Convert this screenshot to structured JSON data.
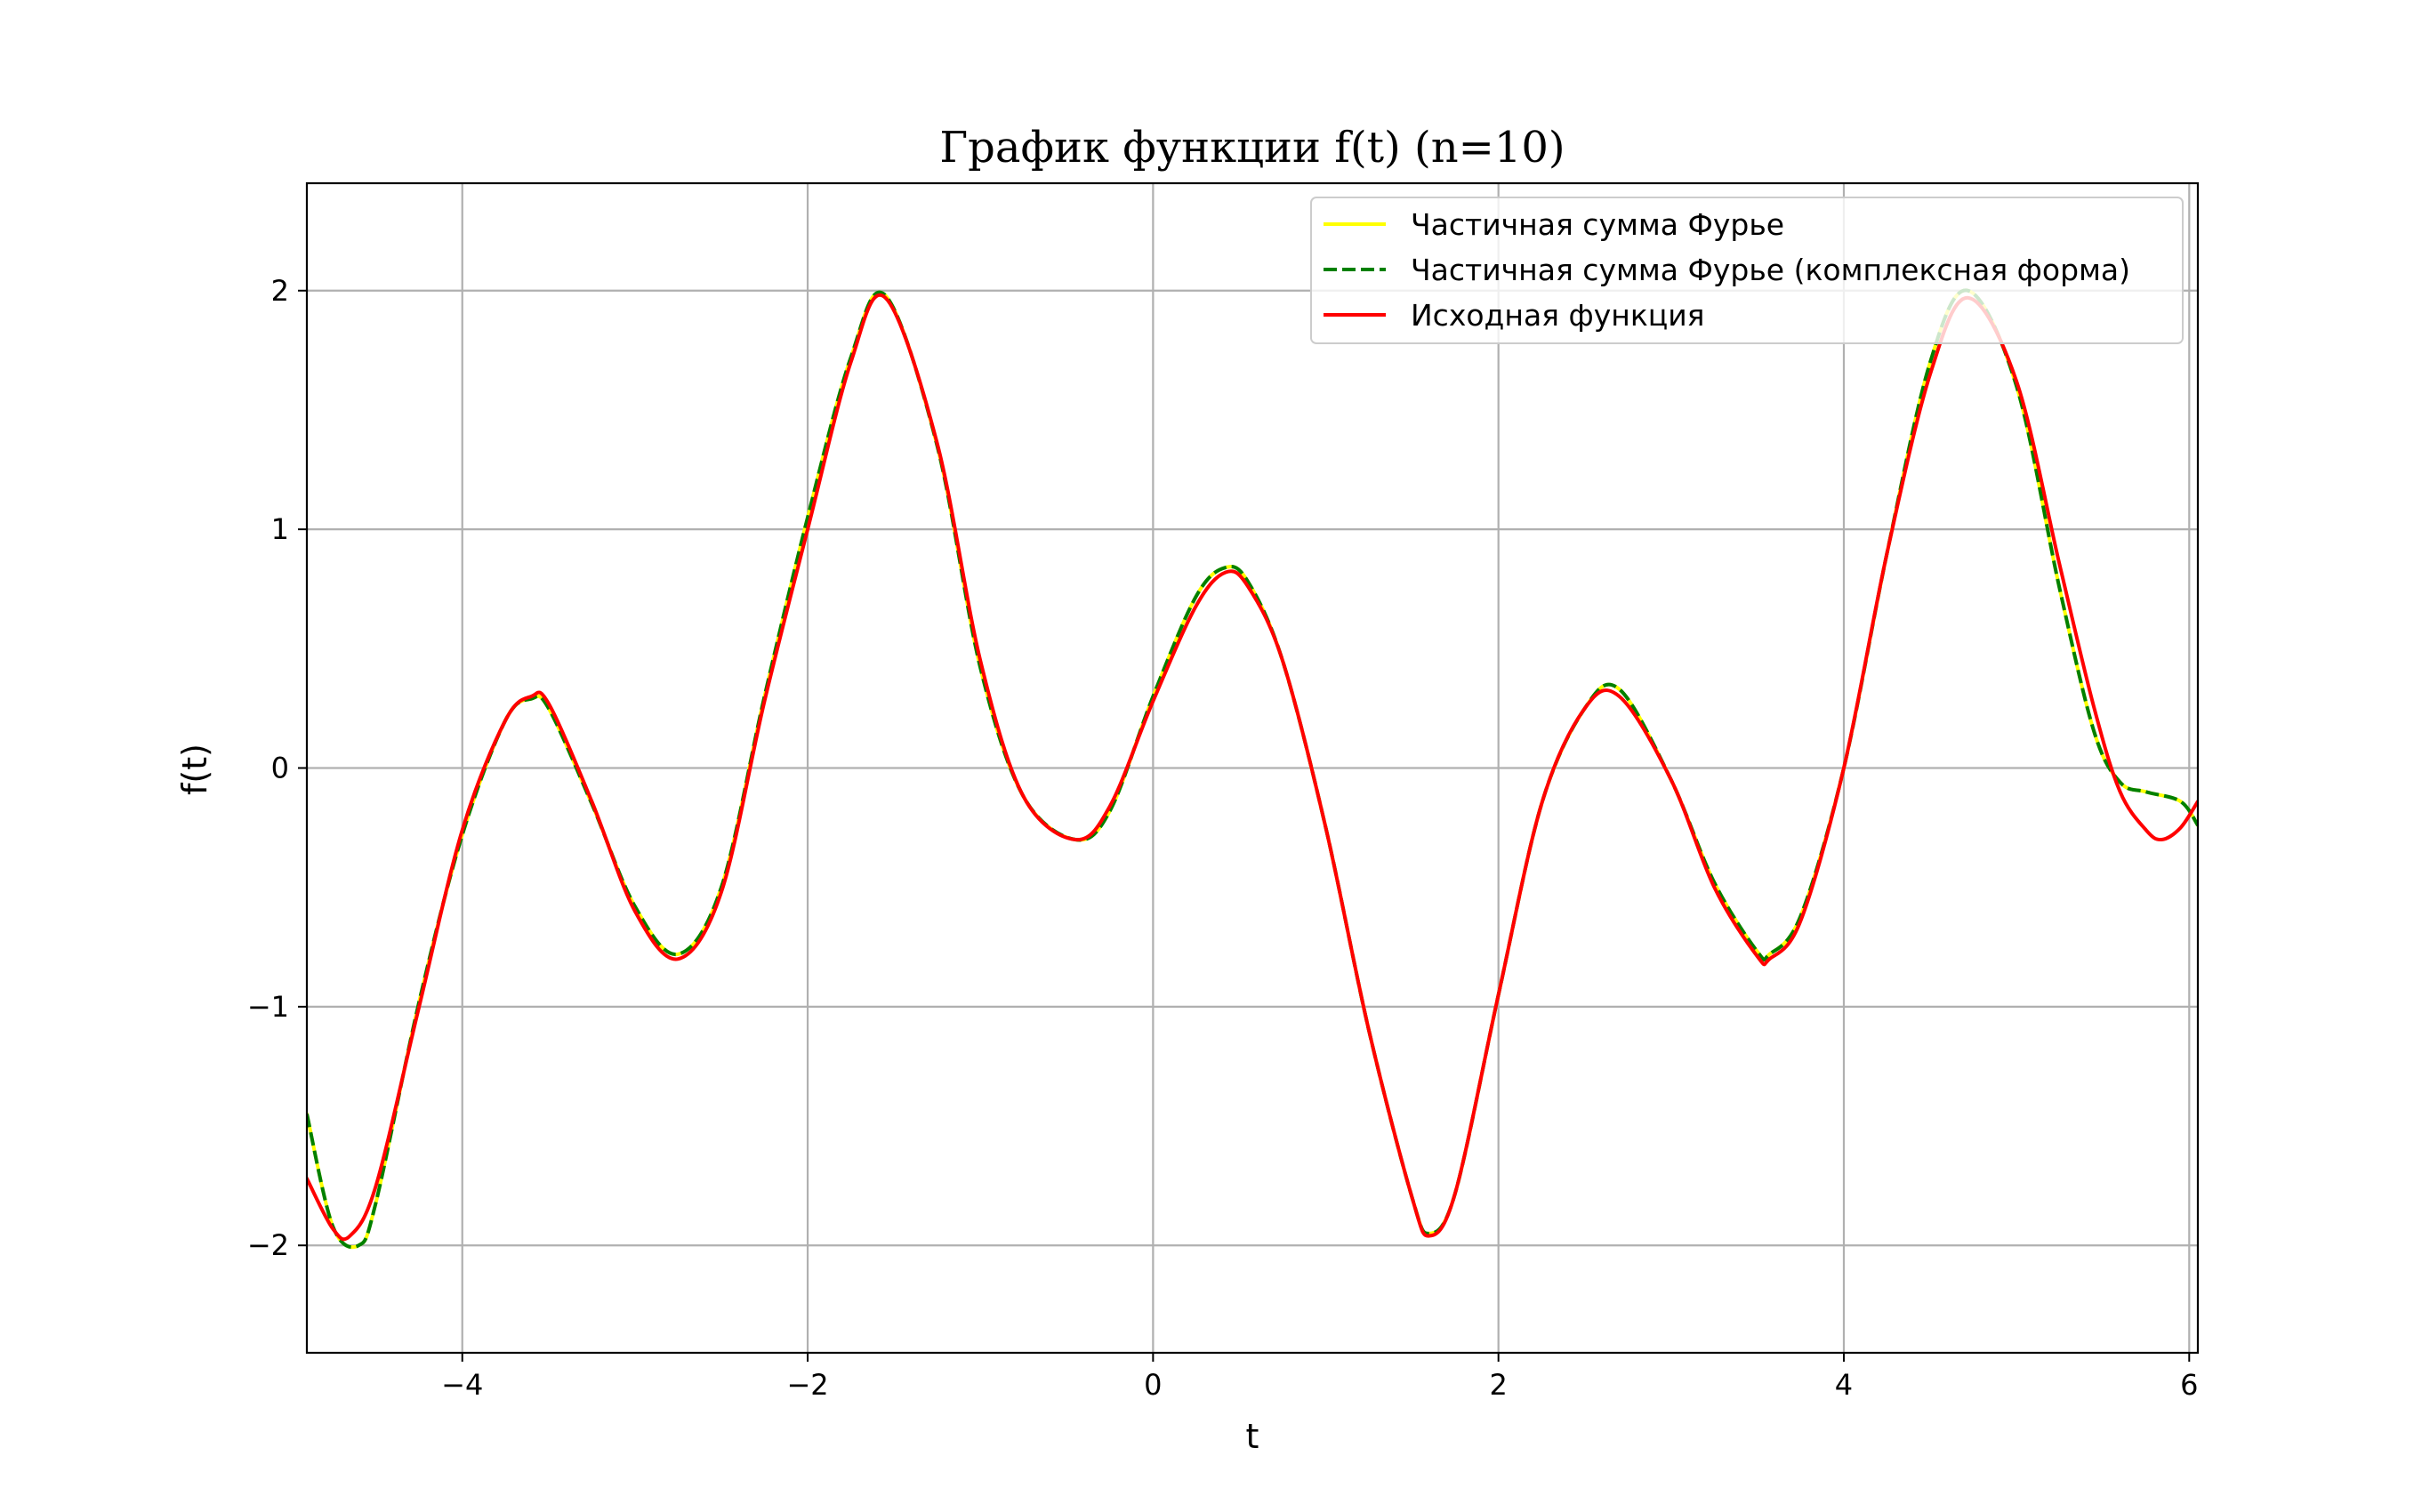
{
  "chart_data": {
    "type": "line",
    "title": "График функции f(t) (n=10)",
    "xlabel": "t",
    "ylabel": "f(t)",
    "xlim": [
      -4.9,
      6.05
    ],
    "ylim": [
      -2.45,
      2.45
    ],
    "xticks": [
      -4,
      -2,
      0,
      2,
      4,
      6
    ],
    "yticks": [
      -2,
      -1,
      0,
      1,
      2
    ],
    "xtick_labels": [
      "−4",
      "−2",
      "0",
      "2",
      "4",
      "6"
    ],
    "ytick_labels": [
      "−2",
      "−1",
      "0",
      "1",
      "2"
    ],
    "grid": true,
    "legend_position": "top-right",
    "series": [
      {
        "name": "Частичная сумма Фурье",
        "color": "#ffff00",
        "style": "solid",
        "x": [
          -4.9,
          -4.75,
          -4.6,
          -4.5,
          -4.25,
          -4.0,
          -3.75,
          -3.6,
          -3.5,
          -3.25,
          -3.0,
          -2.75,
          -2.5,
          -2.25,
          -2.0,
          -1.75,
          -1.55,
          -1.25,
          -1.0,
          -0.75,
          -0.45,
          -0.25,
          0.0,
          0.25,
          0.42,
          0.55,
          0.75,
          1.0,
          1.25,
          1.5,
          1.6,
          1.75,
          2.0,
          2.25,
          2.5,
          2.7,
          3.0,
          3.25,
          3.5,
          3.57,
          3.75,
          4.0,
          4.25,
          4.5,
          4.72,
          5.0,
          5.25,
          5.45,
          5.6,
          5.75,
          5.95,
          6.05
        ],
        "y": [
          -1.45,
          -1.92,
          -2.0,
          -1.82,
          -0.98,
          -0.28,
          0.2,
          0.29,
          0.25,
          -0.15,
          -0.58,
          -0.78,
          -0.5,
          0.3,
          1.05,
          1.72,
          1.98,
          1.35,
          0.42,
          -0.12,
          -0.3,
          -0.18,
          0.3,
          0.72,
          0.84,
          0.78,
          0.45,
          -0.25,
          -1.1,
          -1.8,
          -1.95,
          -1.78,
          -0.95,
          -0.15,
          0.25,
          0.33,
          -0.05,
          -0.48,
          -0.77,
          -0.78,
          -0.62,
          0.0,
          0.9,
          1.7,
          2.0,
          1.6,
          0.75,
          0.15,
          -0.06,
          -0.1,
          -0.14,
          -0.24
        ]
      },
      {
        "name": "Частичная сумма Фурье (комплексная форма)",
        "color": "#008000",
        "style": "dashed",
        "x": [
          -4.9,
          -4.75,
          -4.6,
          -4.5,
          -4.25,
          -4.0,
          -3.75,
          -3.6,
          -3.5,
          -3.25,
          -3.0,
          -2.75,
          -2.5,
          -2.25,
          -2.0,
          -1.75,
          -1.55,
          -1.25,
          -1.0,
          -0.75,
          -0.45,
          -0.25,
          0.0,
          0.25,
          0.42,
          0.55,
          0.75,
          1.0,
          1.25,
          1.5,
          1.6,
          1.75,
          2.0,
          2.25,
          2.5,
          2.7,
          3.0,
          3.25,
          3.5,
          3.57,
          3.75,
          4.0,
          4.25,
          4.5,
          4.72,
          5.0,
          5.25,
          5.45,
          5.6,
          5.75,
          5.95,
          6.05
        ],
        "y": [
          -1.45,
          -1.92,
          -2.0,
          -1.82,
          -0.98,
          -0.28,
          0.2,
          0.29,
          0.25,
          -0.15,
          -0.58,
          -0.78,
          -0.5,
          0.3,
          1.05,
          1.72,
          1.98,
          1.35,
          0.42,
          -0.12,
          -0.3,
          -0.18,
          0.3,
          0.72,
          0.84,
          0.78,
          0.45,
          -0.25,
          -1.1,
          -1.8,
          -1.95,
          -1.78,
          -0.95,
          -0.15,
          0.25,
          0.33,
          -0.05,
          -0.48,
          -0.77,
          -0.78,
          -0.62,
          0.0,
          0.9,
          1.7,
          2.0,
          1.6,
          0.75,
          0.15,
          -0.06,
          -0.1,
          -0.14,
          -0.24
        ]
      },
      {
        "name": "Исходная функция",
        "color": "#ff0000",
        "style": "solid",
        "x": [
          -4.9,
          -4.75,
          -4.65,
          -4.5,
          -4.25,
          -4.0,
          -3.75,
          -3.6,
          -3.5,
          -3.25,
          -3.0,
          -2.75,
          -2.5,
          -2.25,
          -2.0,
          -1.75,
          -1.55,
          -1.25,
          -1.0,
          -0.75,
          -0.45,
          -0.25,
          0.0,
          0.25,
          0.42,
          0.55,
          0.75,
          1.0,
          1.25,
          1.5,
          1.6,
          1.75,
          2.0,
          2.25,
          2.5,
          2.7,
          3.0,
          3.25,
          3.5,
          3.57,
          3.75,
          4.0,
          4.25,
          4.5,
          4.72,
          5.0,
          5.25,
          5.45,
          5.6,
          5.75,
          5.84,
          5.95,
          6.05
        ],
        "y": [
          -1.72,
          -1.93,
          -1.96,
          -1.75,
          -1.0,
          -0.26,
          0.2,
          0.3,
          0.27,
          -0.14,
          -0.6,
          -0.8,
          -0.52,
          0.28,
          1.0,
          1.7,
          1.97,
          1.36,
          0.45,
          -0.12,
          -0.3,
          -0.16,
          0.28,
          0.68,
          0.82,
          0.76,
          0.45,
          -0.25,
          -1.1,
          -1.8,
          -1.96,
          -1.78,
          -0.95,
          -0.15,
          0.25,
          0.3,
          -0.05,
          -0.5,
          -0.79,
          -0.8,
          -0.64,
          0.0,
          0.9,
          1.65,
          1.97,
          1.62,
          0.85,
          0.25,
          -0.1,
          -0.26,
          -0.3,
          -0.25,
          -0.14
        ]
      }
    ]
  }
}
